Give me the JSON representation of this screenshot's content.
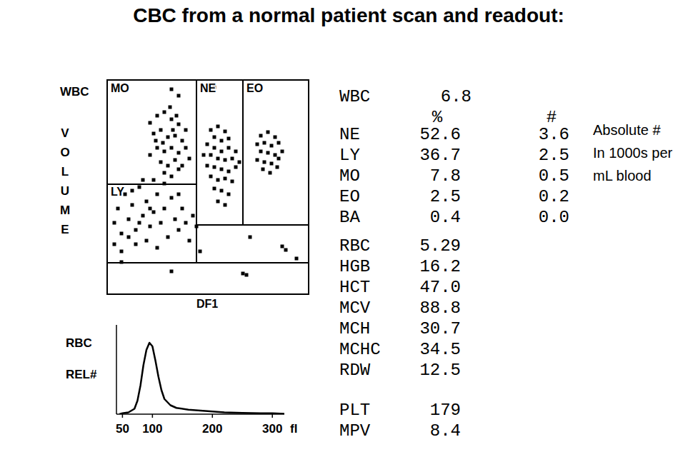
{
  "title": "CBC from a normal patient scan and readout:",
  "chart_data": [
    {
      "type": "scatter",
      "title": "WBC",
      "ylabel": "VOLUME",
      "xlabel": "DF1",
      "region_labels": [
        "MO",
        "NE",
        "EO",
        "LY"
      ],
      "xlim": [
        0,
        282
      ],
      "ylim": [
        0,
        300
      ],
      "tick_labels": false,
      "color": "#000000",
      "marker": "square",
      "x": [
        60,
        70,
        80,
        90,
        100,
        110,
        65,
        75,
        85,
        95,
        105,
        70,
        80,
        90,
        100,
        110,
        75,
        85,
        95,
        105,
        80,
        90,
        100,
        60,
        115,
        88,
        97,
        68,
        78,
        92,
        90,
        150,
        100,
        145,
        155,
        165,
        150,
        160,
        170,
        140,
        150,
        160,
        170,
        180,
        145,
        155,
        165,
        175,
        140,
        150,
        160,
        170,
        180,
        145,
        155,
        165,
        175,
        150,
        160,
        170,
        155,
        165,
        135,
        185,
        215,
        225,
        235,
        210,
        220,
        230,
        240,
        215,
        225,
        235,
        210,
        220,
        230,
        240,
        218,
        228,
        238,
        245,
        10,
        15,
        20,
        25,
        30,
        35,
        40,
        45,
        50,
        55,
        60,
        65,
        70,
        75,
        80,
        85,
        90,
        95,
        100,
        105,
        110,
        115,
        120,
        40,
        55,
        70,
        30,
        50,
        65,
        80,
        20,
        100,
        125,
        60,
        45,
        35,
        250,
        245,
        265,
        90,
        195,
        190,
        10,
        130,
        200,
        140,
        20
      ],
      "values": [
        240,
        250,
        255,
        245,
        238,
        230,
        225,
        230,
        220,
        222,
        215,
        205,
        200,
        205,
        198,
        205,
        185,
        180,
        188,
        180,
        170,
        165,
        175,
        195,
        190,
        262,
        250,
        215,
        212,
        230,
        287,
        290,
        278,
        230,
        235,
        228,
        220,
        215,
        218,
        210,
        205,
        200,
        205,
        200,
        195,
        190,
        188,
        190,
        180,
        178,
        175,
        172,
        178,
        165,
        160,
        162,
        158,
        148,
        145,
        140,
        130,
        125,
        195,
        185,
        222,
        227,
        220,
        210,
        212,
        208,
        212,
        200,
        198,
        195,
        188,
        185,
        183,
        190,
        175,
        170,
        178,
        200,
        100,
        120,
        85,
        140,
        105,
        125,
        90,
        150,
        110,
        130,
        95,
        115,
        140,
        100,
        120,
        80,
        135,
        105,
        90,
        120,
        100,
        75,
        110,
        70,
        75,
        65,
        80,
        160,
        160,
        155,
        60,
        140,
        95,
        120,
        100,
        145,
        62,
        67,
        50,
        32,
        27,
        29,
        70,
        60,
        80,
        290,
        45
      ]
    },
    {
      "type": "line",
      "title": "RBC",
      "ylabel": "REL#",
      "xlabel": "fl",
      "xlim": [
        40,
        320
      ],
      "ylim": [
        0,
        100
      ],
      "xticks": [
        50,
        100,
        200,
        300
      ],
      "tick_labels": "x",
      "color": "#000000",
      "x": [
        45,
        50,
        60,
        70,
        75,
        80,
        85,
        90,
        95,
        100,
        105,
        110,
        115,
        120,
        130,
        140,
        160,
        180,
        200,
        220,
        250,
        280,
        300,
        320
      ],
      "values": [
        0,
        1,
        2,
        6,
        15,
        32,
        55,
        72,
        80,
        76,
        60,
        42,
        27,
        17,
        10,
        7,
        5,
        4,
        3,
        2,
        1.5,
        1,
        1,
        0.5
      ]
    }
  ],
  "readout": {
    "wbc": {
      "label": "WBC",
      "value": "6.8"
    },
    "columns": [
      "%",
      "#"
    ],
    "differential": [
      {
        "label": "NE",
        "percent": "52.6",
        "absolute": "3.6"
      },
      {
        "label": "LY",
        "percent": "36.7",
        "absolute": "2.5"
      },
      {
        "label": "MO",
        "percent": "7.8",
        "absolute": "0.5"
      },
      {
        "label": "EO",
        "percent": "2.5",
        "absolute": "0.2"
      },
      {
        "label": "BA",
        "percent": "0.4",
        "absolute": "0.0"
      }
    ],
    "indices": [
      {
        "label": "RBC",
        "value": "5.29"
      },
      {
        "label": "HGB",
        "value": "16.2"
      },
      {
        "label": "HCT",
        "value": "47.0"
      },
      {
        "label": "MCV",
        "value": "88.8"
      },
      {
        "label": "MCH",
        "value": "30.7"
      },
      {
        "label": "MCHC",
        "value": "34.5"
      },
      {
        "label": "RDW",
        "value": "12.5"
      }
    ],
    "platelets": [
      {
        "label": "PLT",
        "value": "179"
      },
      {
        "label": "MPV",
        "value": "8.4"
      }
    ],
    "note": [
      "Absolute #",
      "In 1000s per",
      "mL blood"
    ]
  }
}
